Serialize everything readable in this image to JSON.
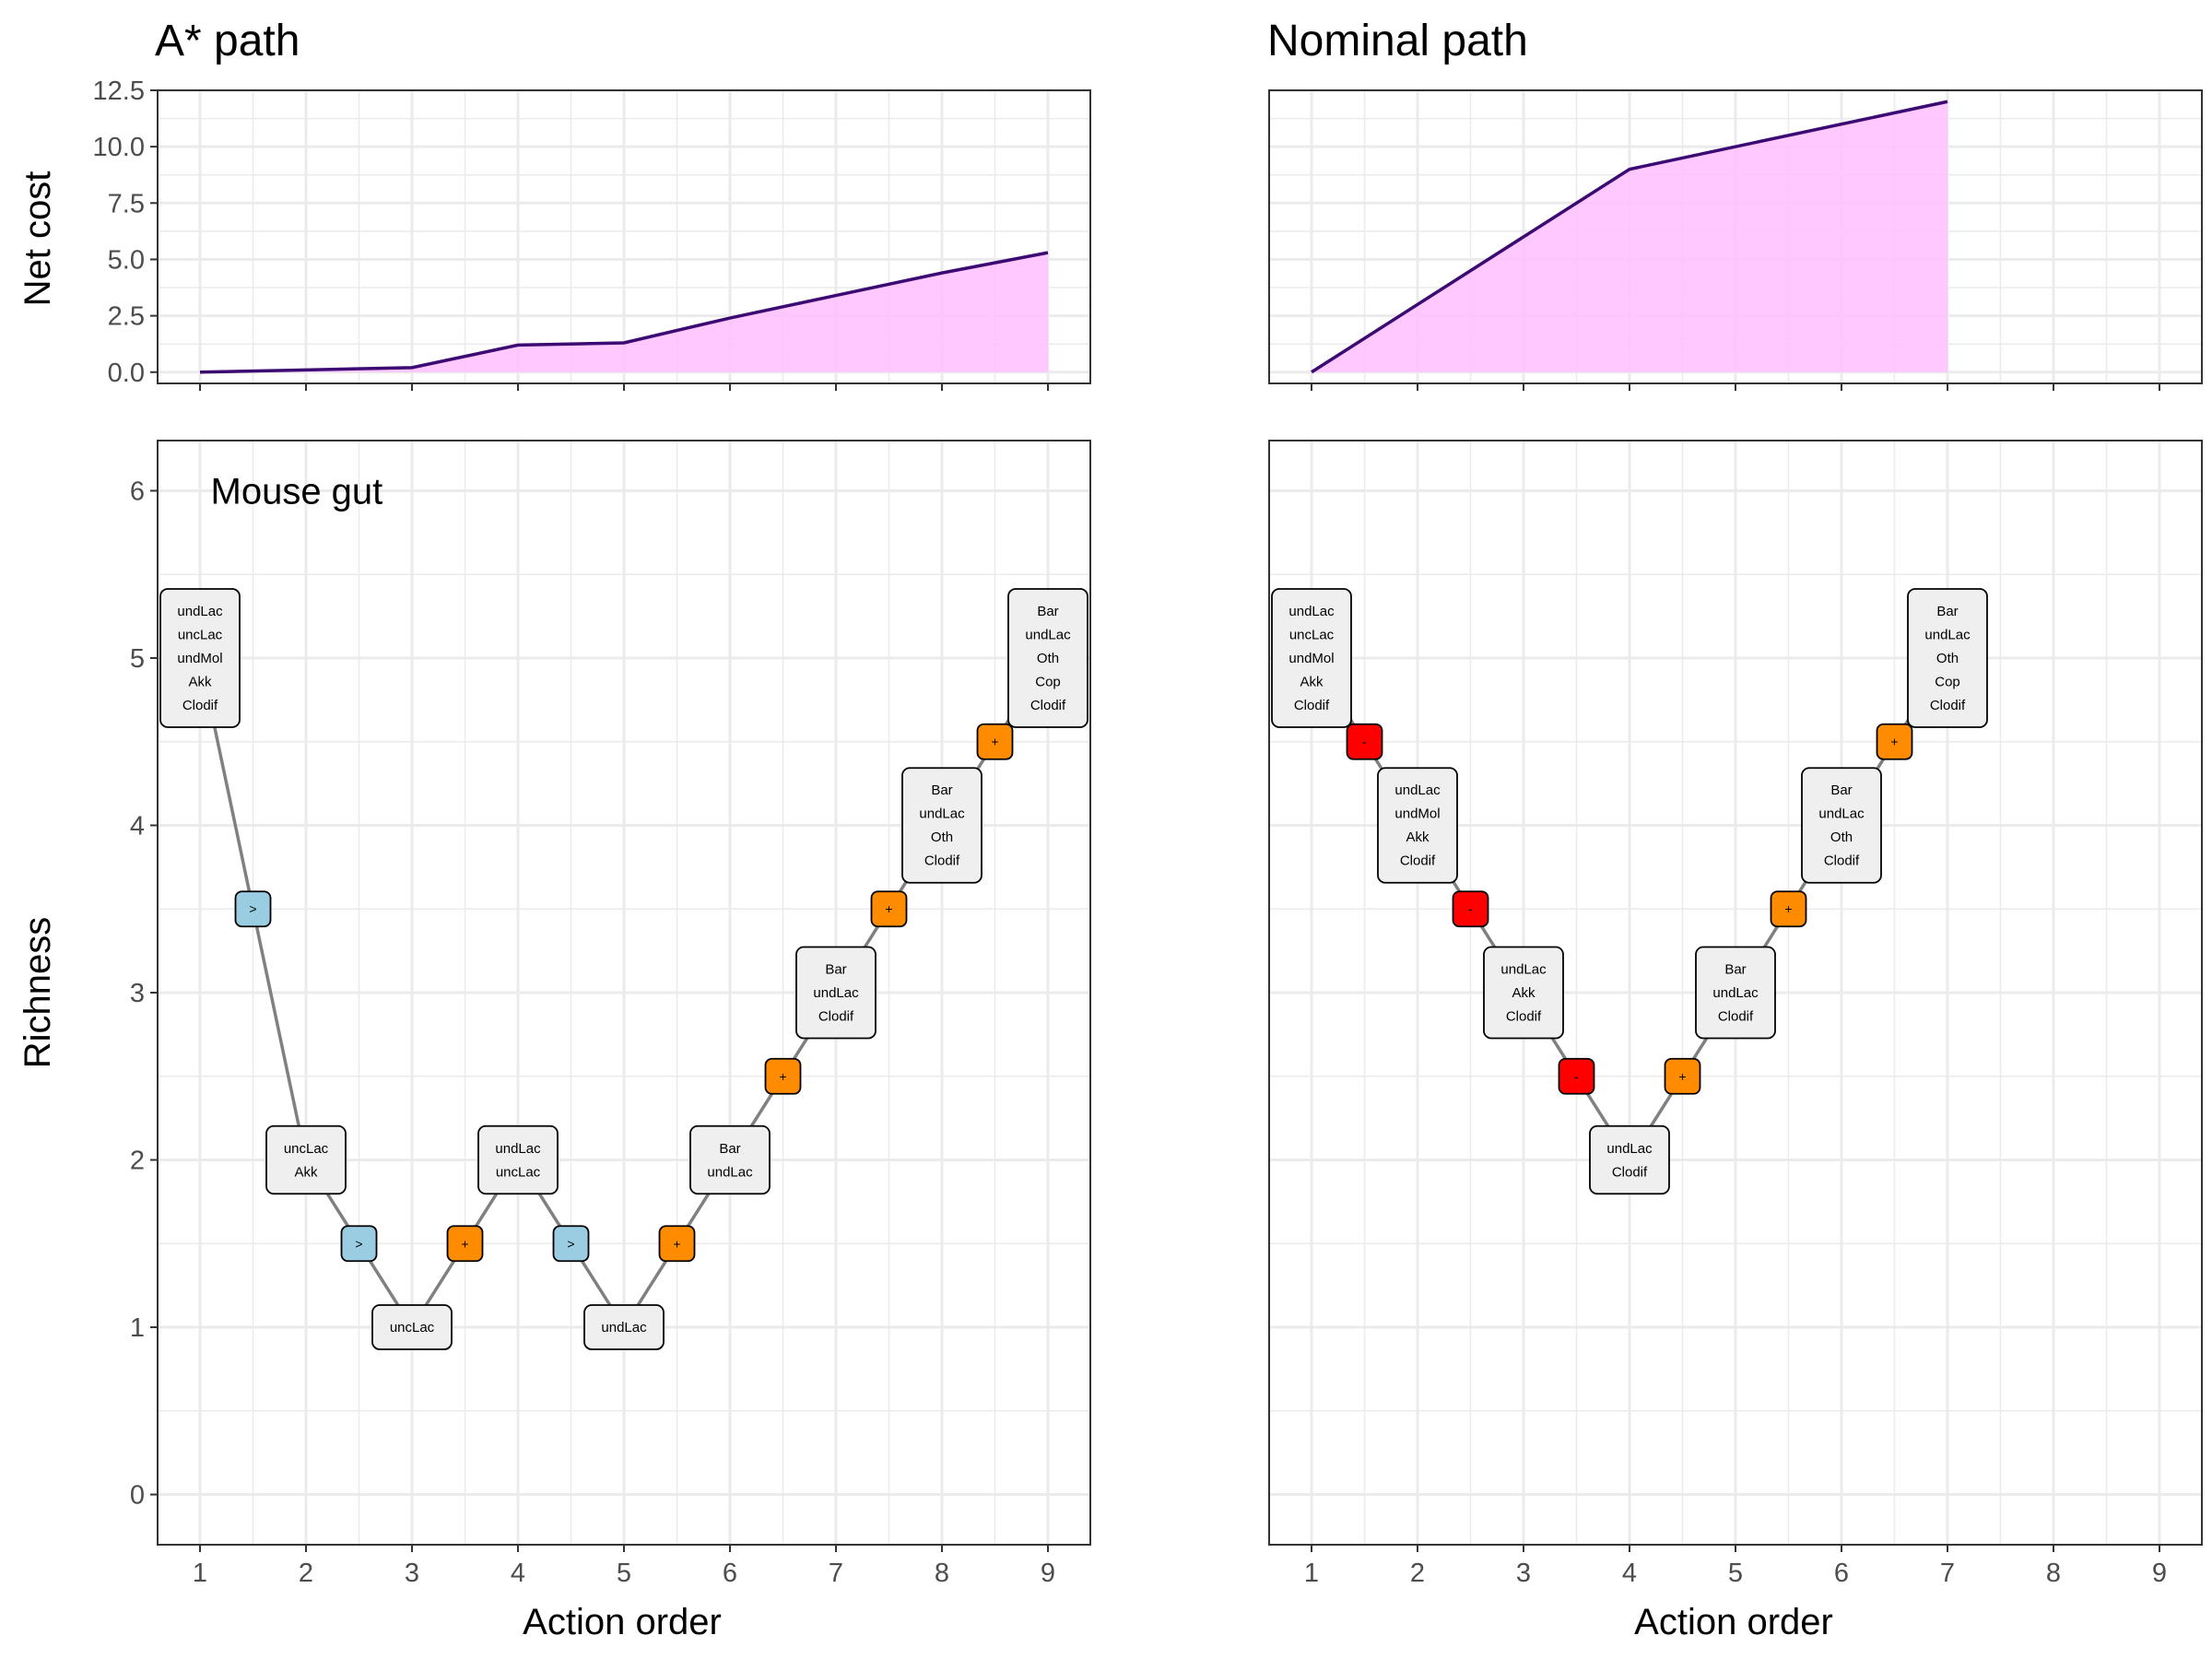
{
  "chart_data": [
    {
      "type": "area",
      "panel": "top-left",
      "title": "A* path",
      "ylabel": "Net cost",
      "xlim": [
        0.6,
        9.4
      ],
      "ylim": [
        -0.5,
        12.5
      ],
      "yticks": [
        "0.0",
        "2.5",
        "5.0",
        "7.5",
        "10.0",
        "12.5"
      ],
      "x": [
        1,
        2,
        3,
        4,
        5,
        6,
        7,
        8,
        9
      ],
      "values": [
        0,
        0.1,
        0.2,
        1.2,
        1.3,
        2.4,
        3.4,
        4.4,
        5.3
      ],
      "fill_color": "#ffbfff",
      "line_color": "#3b0a73"
    },
    {
      "type": "area",
      "panel": "top-right",
      "title": "Nominal path",
      "xlim": [
        0.6,
        9.4
      ],
      "ylim": [
        -0.5,
        12.5
      ],
      "x": [
        1,
        4,
        7
      ],
      "values": [
        0,
        9,
        12
      ],
      "fill_color": "#ffbfff",
      "line_color": "#3b0a73"
    },
    {
      "type": "line",
      "panel": "bottom-left",
      "annotation": "Mouse gut",
      "xlabel": "Action order",
      "ylabel": "Richness",
      "xlim": [
        0.6,
        9.4
      ],
      "ylim": [
        -0.3,
        6.3
      ],
      "xticks": [
        "1",
        "2",
        "3",
        "4",
        "5",
        "6",
        "7",
        "8",
        "9"
      ],
      "yticks": [
        "0",
        "1",
        "2",
        "3",
        "4",
        "5",
        "6"
      ],
      "line_color": "#808080",
      "states": [
        {
          "x": 1,
          "y": 5,
          "species": [
            "undLac",
            "uncLac",
            "undMol",
            "Akk",
            "Clodif"
          ]
        },
        {
          "x": 2,
          "y": 2,
          "species": [
            "uncLac",
            "Akk"
          ]
        },
        {
          "x": 3,
          "y": 1,
          "species": [
            "uncLac"
          ]
        },
        {
          "x": 4,
          "y": 2,
          "species": [
            "undLac",
            "uncLac"
          ]
        },
        {
          "x": 5,
          "y": 1,
          "species": [
            "undLac"
          ]
        },
        {
          "x": 6,
          "y": 2,
          "species": [
            "Bar",
            "undLac"
          ]
        },
        {
          "x": 7,
          "y": 3,
          "species": [
            "Bar",
            "undLac",
            "Clodif"
          ]
        },
        {
          "x": 8,
          "y": 4,
          "species": [
            "Bar",
            "undLac",
            "Oth",
            "Clodif"
          ]
        },
        {
          "x": 9,
          "y": 5,
          "species": [
            "Bar",
            "undLac",
            "Oth",
            "Cop",
            "Clodif"
          ]
        }
      ],
      "actions": [
        {
          "x": 1.5,
          "y": 3.5,
          "symbol": ">",
          "kind": "replace"
        },
        {
          "x": 2.5,
          "y": 1.5,
          "symbol": ">",
          "kind": "replace"
        },
        {
          "x": 3.5,
          "y": 1.5,
          "symbol": "+",
          "kind": "add"
        },
        {
          "x": 4.5,
          "y": 1.5,
          "symbol": ">",
          "kind": "replace"
        },
        {
          "x": 5.5,
          "y": 1.5,
          "symbol": "+",
          "kind": "add"
        },
        {
          "x": 6.5,
          "y": 2.5,
          "symbol": "+",
          "kind": "add"
        },
        {
          "x": 7.5,
          "y": 3.5,
          "symbol": "+",
          "kind": "add"
        },
        {
          "x": 8.5,
          "y": 4.5,
          "symbol": "+",
          "kind": "add"
        }
      ]
    },
    {
      "type": "line",
      "panel": "bottom-right",
      "xlabel": "Action order",
      "xlim": [
        0.6,
        9.4
      ],
      "ylim": [
        -0.3,
        6.3
      ],
      "xticks": [
        "1",
        "2",
        "3",
        "4",
        "5",
        "6",
        "7",
        "8",
        "9"
      ],
      "line_color": "#808080",
      "states": [
        {
          "x": 1,
          "y": 5,
          "species": [
            "undLac",
            "uncLac",
            "undMol",
            "Akk",
            "Clodif"
          ]
        },
        {
          "x": 2,
          "y": 4,
          "species": [
            "undLac",
            "undMol",
            "Akk",
            "Clodif"
          ]
        },
        {
          "x": 3,
          "y": 3,
          "species": [
            "undLac",
            "Akk",
            "Clodif"
          ]
        },
        {
          "x": 4,
          "y": 2,
          "species": [
            "undLac",
            "Clodif"
          ]
        },
        {
          "x": 5,
          "y": 3,
          "species": [
            "Bar",
            "undLac",
            "Clodif"
          ]
        },
        {
          "x": 6,
          "y": 4,
          "species": [
            "Bar",
            "undLac",
            "Oth",
            "Clodif"
          ]
        },
        {
          "x": 7,
          "y": 5,
          "species": [
            "Bar",
            "undLac",
            "Oth",
            "Cop",
            "Clodif"
          ]
        }
      ],
      "actions": [
        {
          "x": 1.5,
          "y": 4.5,
          "symbol": "-",
          "kind": "remove"
        },
        {
          "x": 2.5,
          "y": 3.5,
          "symbol": "-",
          "kind": "remove"
        },
        {
          "x": 3.5,
          "y": 2.5,
          "symbol": "-",
          "kind": "remove"
        },
        {
          "x": 4.5,
          "y": 2.5,
          "symbol": "+",
          "kind": "add"
        },
        {
          "x": 5.5,
          "y": 3.5,
          "symbol": "+",
          "kind": "add"
        },
        {
          "x": 6.5,
          "y": 4.5,
          "symbol": "+",
          "kind": "add"
        }
      ]
    }
  ],
  "action_colors": {
    "add": "#ff8c00",
    "remove": "#ff0000",
    "replace": "#9acde2"
  },
  "state_box_color": "#efefef"
}
